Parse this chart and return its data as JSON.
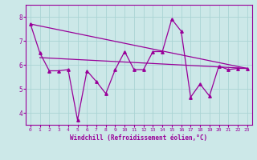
{
  "xlabel": "Windchill (Refroidissement éolien,°C)",
  "ylabel": "",
  "bg_color": "#cce8e8",
  "line_color": "#990099",
  "grid_color": "#aad4d4",
  "xlim": [
    -0.5,
    23.5
  ],
  "ylim": [
    3.5,
    8.5
  ],
  "xticks": [
    0,
    1,
    2,
    3,
    4,
    5,
    6,
    7,
    8,
    9,
    10,
    11,
    12,
    13,
    14,
    15,
    16,
    17,
    18,
    19,
    20,
    21,
    22,
    23
  ],
  "yticks": [
    4,
    5,
    6,
    7,
    8
  ],
  "zigzag_x": [
    0,
    1,
    2,
    3,
    4,
    5,
    6,
    7,
    8,
    9,
    10,
    11,
    12,
    13,
    14,
    15,
    16,
    17,
    18,
    19,
    20,
    21,
    22,
    23
  ],
  "zigzag_y": [
    7.7,
    6.5,
    5.75,
    5.75,
    5.8,
    3.7,
    5.75,
    5.3,
    4.8,
    5.8,
    6.55,
    5.8,
    5.8,
    6.55,
    6.55,
    7.9,
    7.4,
    4.65,
    5.2,
    4.7,
    5.95,
    5.8,
    5.85,
    5.85
  ],
  "line1_x": [
    0,
    23
  ],
  "line1_y": [
    7.7,
    5.85
  ],
  "line2_x": [
    1,
    23
  ],
  "line2_y": [
    6.3,
    5.85
  ]
}
